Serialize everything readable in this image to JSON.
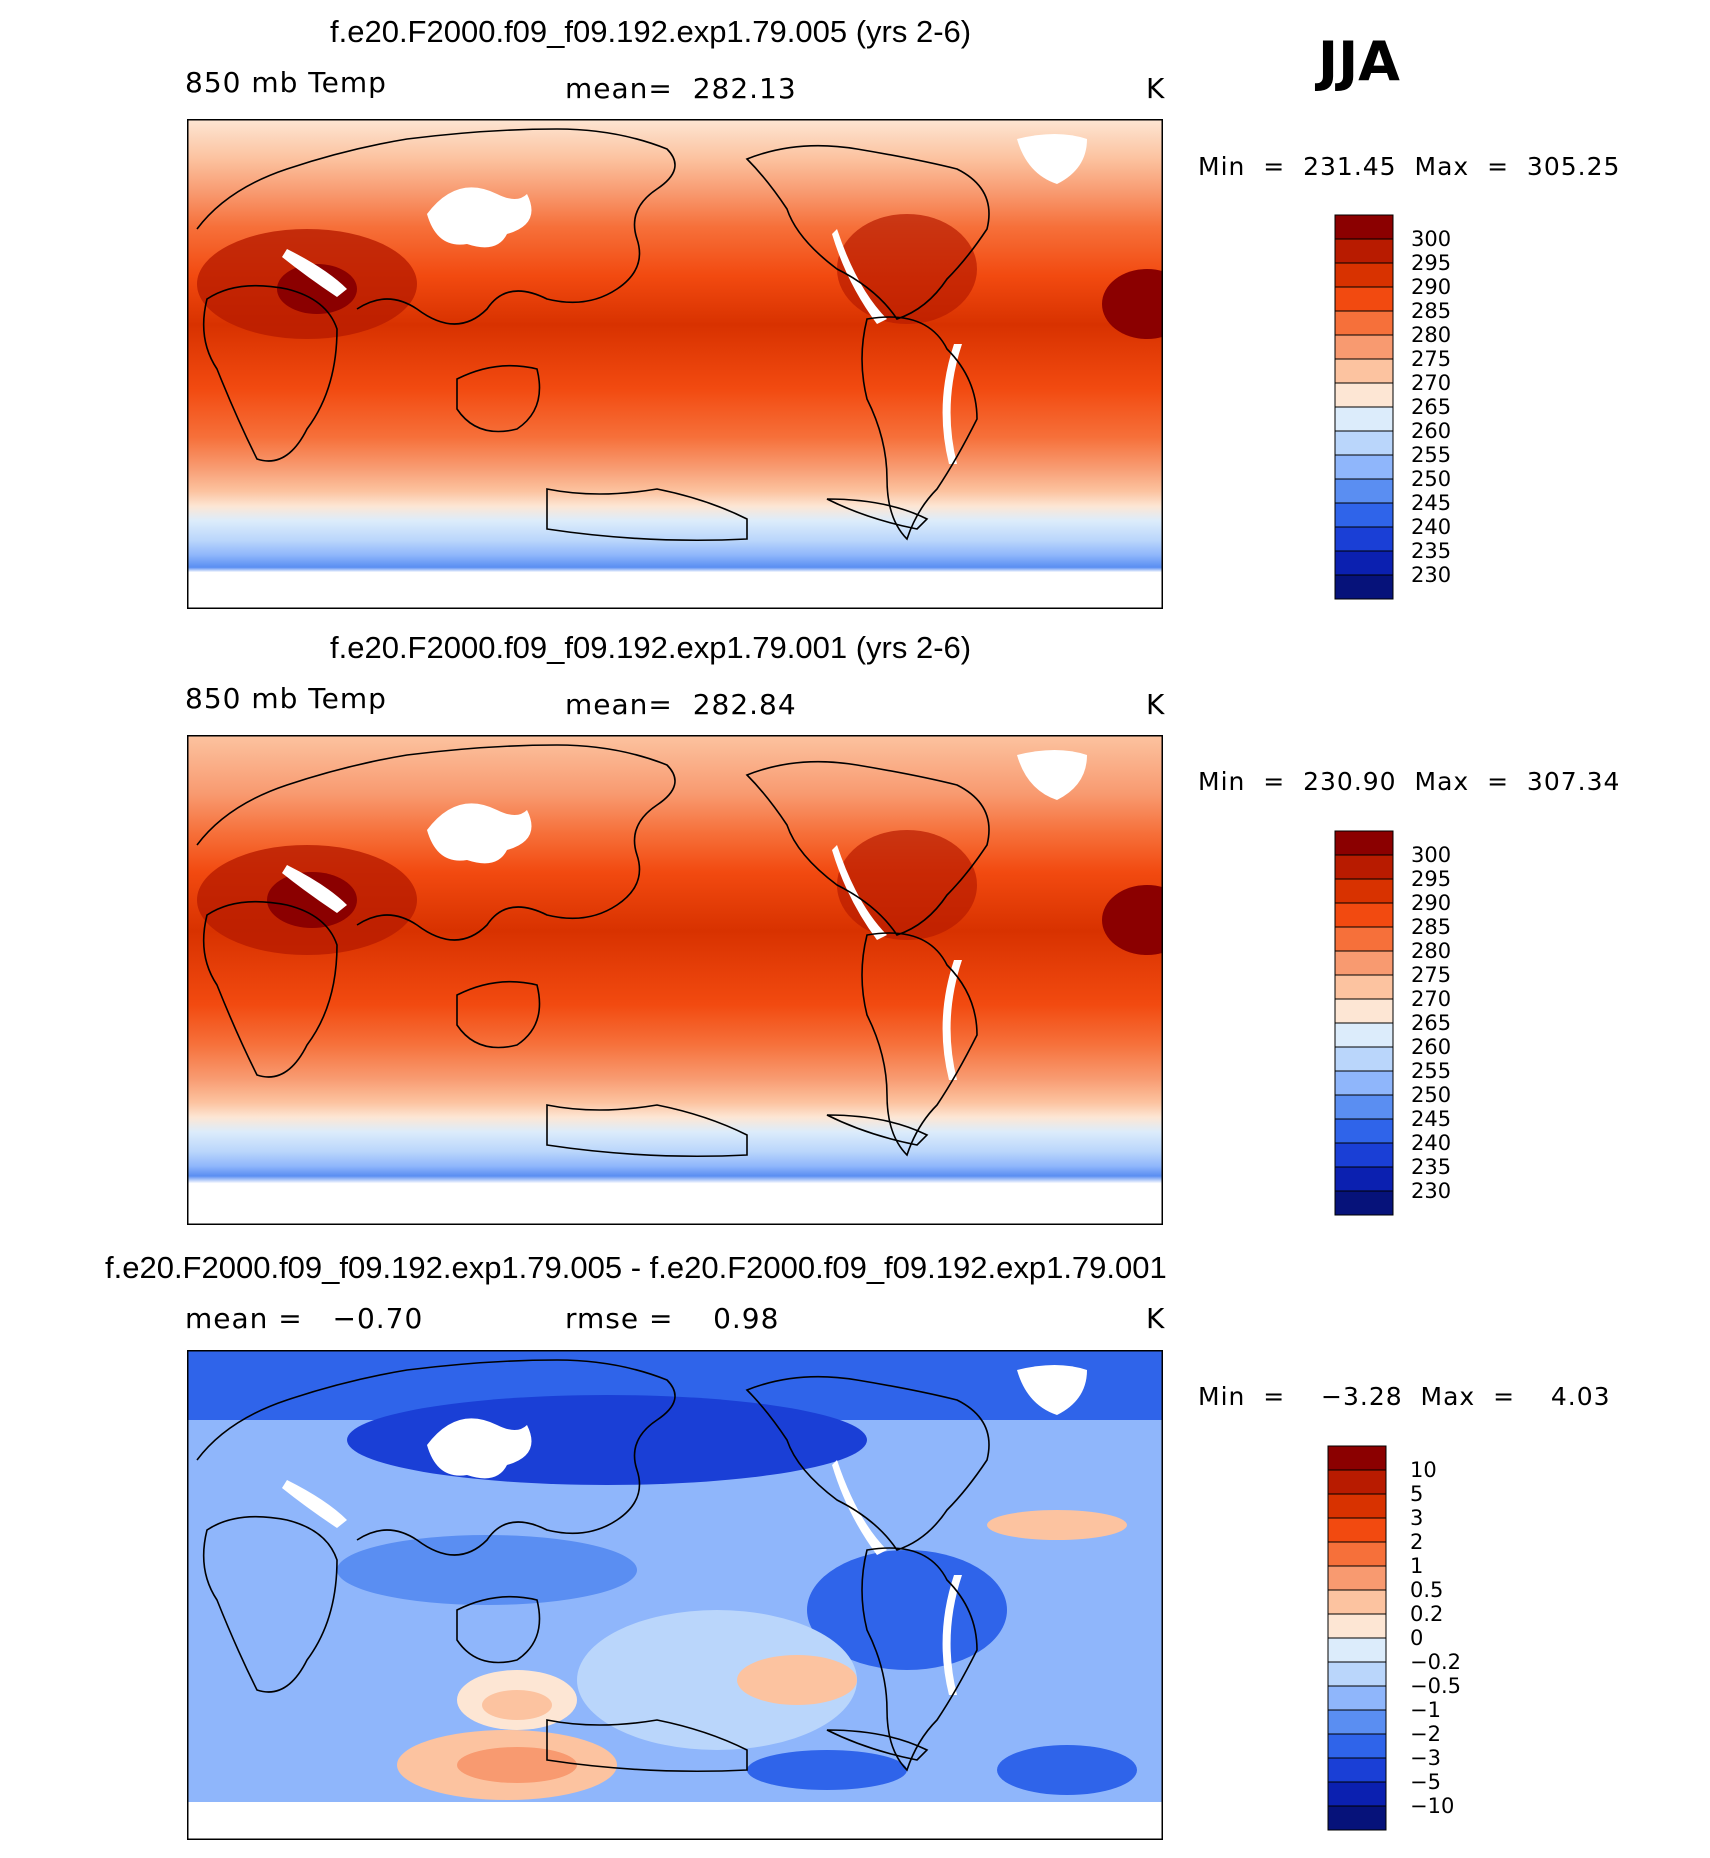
{
  "season": "JJA",
  "chart_data": [
    {
      "type": "heatmap",
      "title": "f.e20.F2000.f09_f09.192.exp1.79.005 (yrs 2-6)",
      "variable": "850 mb Temp",
      "mean_label": "mean=",
      "mean": "282.13",
      "units": "K",
      "min_label": "Min",
      "min": "231.45",
      "max_label": "Max",
      "max": "305.25",
      "colorbar_levels": [
        "300",
        "295",
        "290",
        "285",
        "280",
        "275",
        "270",
        "265",
        "260",
        "255",
        "250",
        "245",
        "240",
        "235",
        "230"
      ],
      "colorbar_colors": [
        "#8b0000",
        "#b81b00",
        "#d83200",
        "#f24a10",
        "#f6703a",
        "#f89a70",
        "#fcc3a0",
        "#fde6d4",
        "#dcecfb",
        "#bad6fb",
        "#8fb6fb",
        "#5a8ef2",
        "#2f64ea",
        "#1a3fd6",
        "#0b20b0",
        "#06127a"
      ]
    },
    {
      "type": "heatmap",
      "title": "f.e20.F2000.f09_f09.192.exp1.79.001 (yrs 2-6)",
      "variable": "850 mb Temp",
      "mean_label": "mean=",
      "mean": "282.84",
      "units": "K",
      "min_label": "Min",
      "min": "230.90",
      "max_label": "Max",
      "max": "307.34",
      "colorbar_levels": [
        "300",
        "295",
        "290",
        "285",
        "280",
        "275",
        "270",
        "265",
        "260",
        "255",
        "250",
        "245",
        "240",
        "235",
        "230"
      ],
      "colorbar_colors": [
        "#8b0000",
        "#b81b00",
        "#d83200",
        "#f24a10",
        "#f6703a",
        "#f89a70",
        "#fcc3a0",
        "#fde6d4",
        "#dcecfb",
        "#bad6fb",
        "#8fb6fb",
        "#5a8ef2",
        "#2f64ea",
        "#1a3fd6",
        "#0b20b0",
        "#06127a"
      ]
    },
    {
      "type": "heatmap",
      "title": "f.e20.F2000.f09_f09.192.exp1.79.005 - f.e20.F2000.f09_f09.192.exp1.79.001",
      "mean_label": "mean =",
      "mean": "−0.70",
      "rmse_label": "rmse =",
      "rmse": "0.98",
      "units": "K",
      "min_label": "Min",
      "min": "−3.28",
      "max_label": "Max",
      "max": "4.03",
      "colorbar_levels": [
        "10",
        "5",
        "3",
        "2",
        "1",
        "0.5",
        "0.2",
        "0",
        "−0.2",
        "−0.5",
        "−1",
        "−2",
        "−3",
        "−5",
        "−10"
      ],
      "colorbar_colors": [
        "#8b0000",
        "#b81b00",
        "#d83200",
        "#f24a10",
        "#f6703a",
        "#f89a70",
        "#fcc3a0",
        "#fde6d4",
        "#dcecfb",
        "#bad6fb",
        "#8fb6fb",
        "#5a8ef2",
        "#2f64ea",
        "#1a3fd6",
        "#0b20b0",
        "#06127a"
      ]
    }
  ]
}
